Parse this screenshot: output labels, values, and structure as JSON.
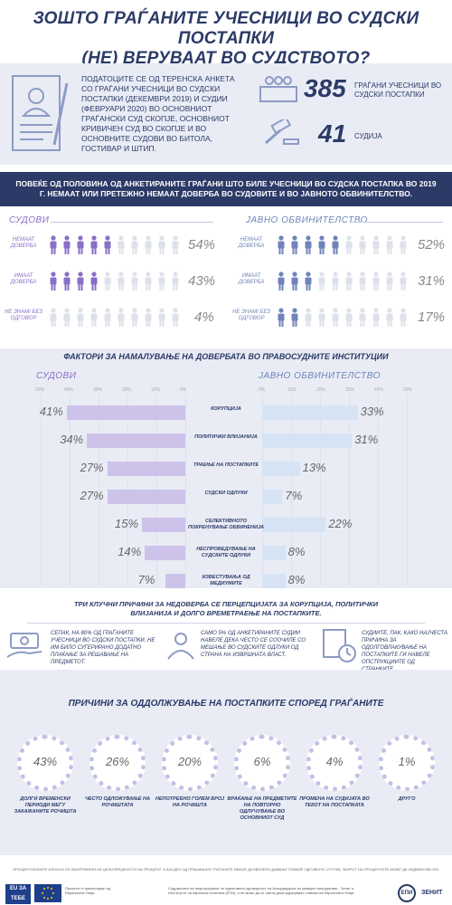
{
  "title": {
    "line1": "ЗОШТО ГРАЃАНИТЕ УЧЕСНИЦИ ВО СУДСКИ ПОСТАПКИ",
    "line2": "(НЕ) ВЕРУВААТ ВО СУДСТВОТО?"
  },
  "intro": {
    "text": "ПОДАТОЦИТЕ СЕ ОД ТЕРЕНСКА АНКЕТА СО ГРАЃАНИ УЧЕСНИЦИ ВО СУДСКИ ПОСТАПКИ (ДЕКЕМВРИ 2019) И СУДИИ (ФЕВРУАРИ 2020) ВО ОСНОВНИОТ ГРАЃАНСКИ СУД СКОПЈЕ, ОСНОВНИОТ КРИВИЧЕН СУД ВО СКОПЈЕ И ВО ОСНОВНИТЕ СУДОВИ ВО БИТОЛА, ГОСТИВАР И ШТИП.",
    "citizens_num": "385",
    "citizens_lbl": "ГРАЃАНИ УЧЕСНИЦИ ВО СУДСКИ ПОСТАПКИ",
    "judges_num": "41",
    "judges_lbl": "СУДИЈА"
  },
  "banner": "ПОВЕЌЕ ОД ПОЛОВИНА ОД АНКЕТИРАНИТЕ ГРАЃАНИ ШТО БИЛЕ УЧЕСНИЦИ ВО СУДСКА ПОСТАПКА ВО 2019 Г. НЕМААТ ИЛИ ПРЕТЕЖНО НЕМААТ ДОВЕРБА ВО СУДОВИТЕ И ВО ЈАВНОТО ОБВИНИТЕЛСТВО.",
  "trust": {
    "courts_title": "СУДОВИ",
    "prosecution_title": "ЈАВНО ОБВИНИТЕЛСТВО",
    "row_labels": [
      "НЕМААТ ДОВЕРБА",
      "ИМААТ ДОВЕРБА",
      "НЕ ЗНАМ/ БЕЗ ОДГОВОР"
    ],
    "courts": [
      "54%",
      "43%",
      "4%"
    ],
    "prosecution": [
      "52%",
      "31%",
      "17%"
    ],
    "courts_values": [
      54,
      43,
      4
    ],
    "prosecution_values": [
      52,
      31,
      17
    ],
    "courts_color": "#8a6fc7",
    "prosecution_color": "#6f84b8"
  },
  "factors": {
    "title": "ФАКТОРИ ЗА НАМАЛУВАЊЕ НА ДОВЕРБАТА ВО ПРАВОСУДНИТЕ ИНСТИТУЦИИ",
    "courts_title": "СУДОВИ",
    "prosecution_title": "ЈАВНО ОБВИНИТЕЛСТВО",
    "axis_left": [
      "50%",
      "40%",
      "30%",
      "20%",
      "10%",
      "0%"
    ],
    "axis_right": [
      "0%",
      "10%",
      "20%",
      "30%",
      "40%",
      "50%"
    ]
  },
  "chart_data": {
    "type": "bar",
    "categories": [
      "КОРУПЦИЈА",
      "ПОЛИТИЧКИ ВЛИЈАНИЈА",
      "ТРАЕЊЕ НА ПОСТАПКИТЕ",
      "СУДСКИ ОДЛУКИ",
      "СЕЛЕКТИВНОТО ПОКРЕНУВАЊЕ ОБВИНЕНИЈА",
      "НЕСПРОВЕДУВАЊЕ НА СУДСКИТЕ ОДЛУКИ",
      "ИЗВЕСТУВАЊА ОД МЕДИУМИТЕ"
    ],
    "series": [
      {
        "name": "СУДОВИ",
        "values": [
          41,
          34,
          27,
          27,
          15,
          14,
          7
        ]
      },
      {
        "name": "ЈАВНО ОБВИНИТЕЛСТВО",
        "values": [
          33,
          31,
          13,
          7,
          22,
          8,
          8
        ]
      }
    ],
    "labels_courts": [
      "41%",
      "34%",
      "27%",
      "27%",
      "15%",
      "14%",
      "7%"
    ],
    "labels_prosecution": [
      "33%",
      "31%",
      "13%",
      "7%",
      "22%",
      "8%",
      "8%"
    ],
    "xlim": [
      0,
      50
    ]
  },
  "key": {
    "title": "ТРИ КЛУЧНИ ПРИЧИНИ ЗА НЕДОВЕРБА СЕ ПЕРЦЕПЦИЈАТА ЗА КОРУПЦИЈА, ПОЛИТИЧКИ ВЛИЈАНИЈА И ДОЛГО ВРЕМЕТРАЕЊЕ НА ПОСТАПКИТЕ.",
    "box1": "СЕПАК, НА 80% ОД ГРАЃАНИТЕ УЧЕСНИЦИ ВО СУДСКИ ПОСТАПКИ, НЕ ИМ БИЛО СУГЕРИРАНО ДОДАТНО ПЛАЌАЊЕ ЗА РЕШАВАЊЕ НА ПРЕДМЕТОТ.",
    "box2": "САМО 5% ОД АНКЕТИРАНИТЕ СУДИИ НАВЕЛЕ ДЕКА ЧЕСТО СЕ СООЧИЛЕ СО МЕШАЊЕ ВО СУДСКИТЕ ОДЛУКИ ОД СТРАНА НА ИЗВРШНАТА ВЛАСТ.",
    "box3": "СУДИИТЕ, ПАК, КАКО НАЈЧЕСТА ПРИЧИНА ЗА ОДОЛГОВЛАКУВАЊЕ НА ПОСТАПКИТЕ ГИ НАВЕЛЕ ОПСТРУКЦИИТЕ ОД СТРАНКИТЕ."
  },
  "delays": {
    "title": "ПРИЧИНИ ЗА ОДДОЛЖУВАЊЕ НА ПОСТАПКИТЕ СПОРЕД ГРАЃАНИТЕ",
    "items": [
      {
        "value": "43%",
        "label": "ДОЛГИ ВРЕМЕНСКИ ПЕРИОДИ МЕЃУ ЗАКАЖАНИТЕ РОЧИШТА"
      },
      {
        "value": "26%",
        "label": "ЧЕСТО ОДЛОЖУВАЊЕ НА РОЧИШТАТА"
      },
      {
        "value": "20%",
        "label": "НЕПОТРЕБНО ГОЛЕМ БРОЈ НА РОЧИШТА"
      },
      {
        "value": "6%",
        "label": "ВРАЌАЊЕ НА ПРЕДМЕТИТЕ НА ПОВТОРНО ОДЛУЧУВАЊЕ ВО ОСНОВНИОТ СУД"
      },
      {
        "value": "4%",
        "label": "ПРОМЕНА НА СУДИЈАТА ВО ТЕКОТ НА ПОСТАПКАТА"
      },
      {
        "value": "1%",
        "label": "ДРУГО"
      }
    ]
  },
  "footnote": "ПРОЦЕНТУАЛНИТЕ ИЗНОСИ СЕ ЗАОКРУЖЕНИ НА ЦЕЛИ ВРЕДНОСТИ НА ПРОЦЕНТ, А КАЈ ДЕЛ ОД ПРАШАЊАТА ГРАЃАНИТЕ ИМАЛЕ ДОЗВОЛЕНО ДАВАЊЕ ПОВЕЌЕ ОДГОВОРИ. ОТТУКА, ЗБИРОТ НА ПРОЦЕНТИТЕ МОЖЕ ДА НАДМИНУВА 100.",
  "footer": {
    "eu": "EU ЗА ТЕБЕ",
    "project": "Проектот е финансиран од Европската Унија",
    "disclaimer": "Содржините на инфографикот се единствена одговорност на Асоцијацијата за развојни иницијативи - Зенит и Институтот за европска политика (ЕПИ), и не може да се смета дека одразуваат ставови на Европската Унија.",
    "epi": "ЕПИ",
    "zenit": "ЗЕНИТ"
  }
}
